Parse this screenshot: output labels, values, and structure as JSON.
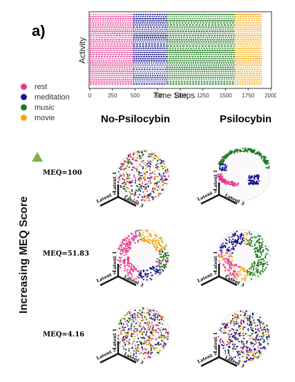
{
  "panel_label": "a)",
  "raster": {
    "ylabel": "Activity",
    "xlabel": "Time Steps",
    "ticks": [
      "0",
      "250",
      "500",
      "750",
      "1000",
      "1250",
      "1500",
      "1750",
      "2000"
    ],
    "segments": [
      {
        "state": "rest",
        "start": 0,
        "end": 480,
        "color": "#e8388f"
      },
      {
        "state": "meditation",
        "start": 480,
        "end": 850,
        "color": "#15138f"
      },
      {
        "state": "music",
        "start": 850,
        "end": 1600,
        "color": "#1c7a1c"
      },
      {
        "state": "movie",
        "start": 1600,
        "end": 1900,
        "color": "#f5a50a"
      }
    ]
  },
  "legend": [
    {
      "label": "rest",
      "color": "#e8388f"
    },
    {
      "label": "meditation",
      "color": "#15138f"
    },
    {
      "label": "music",
      "color": "#1c7a1c"
    },
    {
      "label": "movie",
      "color": "#f5a50a"
    }
  ],
  "columns": [
    "No-Psilocybin",
    "Psilocybin"
  ],
  "y_axis_label": "Increasing MEQ Score",
  "rows": [
    {
      "meq": "MEQ=100"
    },
    {
      "meq": "MEQ=51.83"
    },
    {
      "meq": "MEQ=4.16"
    }
  ],
  "latent_labels": [
    "Latent 1",
    "Latent 2",
    "Latent 3"
  ],
  "arrow_color": "#7cb342",
  "arrow_tail_color": "#2a3a6a"
}
